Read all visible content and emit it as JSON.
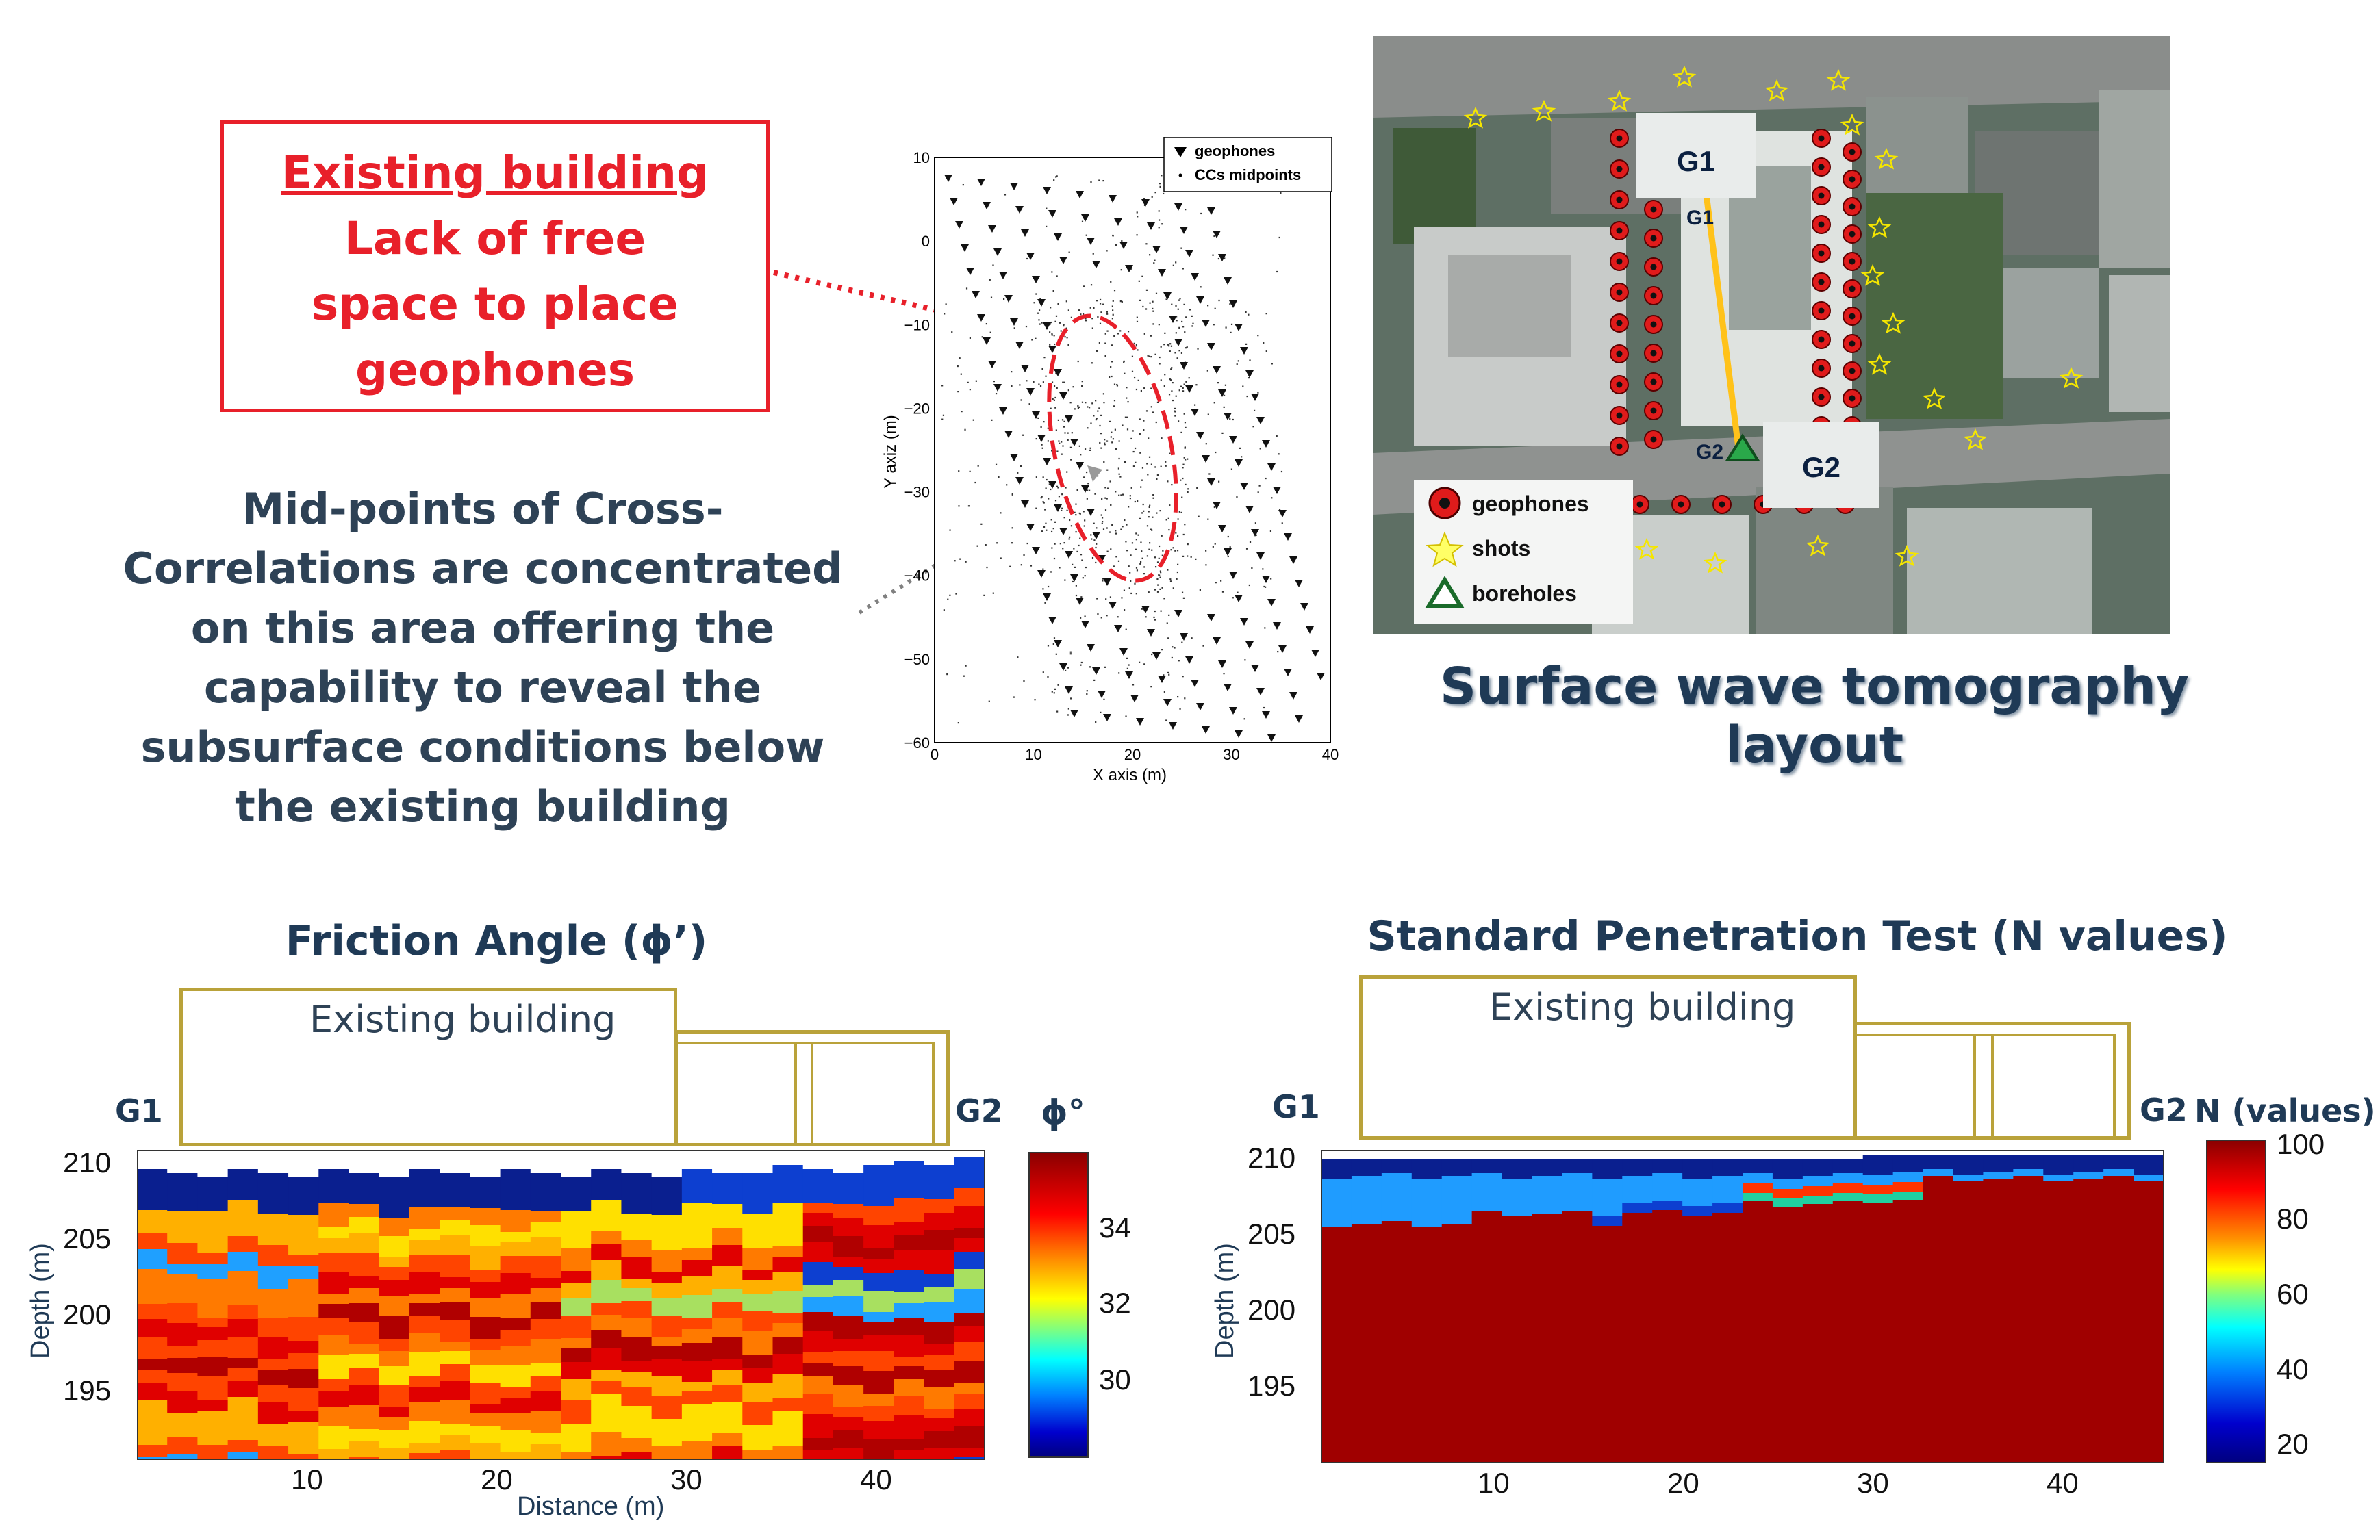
{
  "callout": {
    "line1": "Existing building",
    "line2": "Lack of free",
    "line3": "space to place",
    "line4": "geophones"
  },
  "midpoints_text": {
    "line1": "Mid-points of Cross-",
    "line2": "Correlations are concentrated",
    "line3": "on this area offering the",
    "line4": "capability to reveal the",
    "line5": "subsurface conditions below",
    "line6": "the existing building"
  },
  "scatter": {
    "x_label": "X axis (m)",
    "y_label": "Y axiz (m)",
    "x_ticks": [
      "0",
      "10",
      "20",
      "30",
      "40"
    ],
    "y_ticks": [
      "10",
      "0",
      "−10",
      "−20",
      "−30",
      "−40",
      "−50",
      "−60"
    ],
    "legend": [
      "geophones",
      "CCs midpoints"
    ]
  },
  "map": {
    "label_g1": "G1",
    "label_g2": "G2",
    "small_g1": "G1",
    "small_g2": "G2",
    "legend": [
      "geophones",
      "shots",
      "boreholes"
    ],
    "caption": "Surface wave tomography layout"
  },
  "friction": {
    "title": "Friction Angle (ϕ’)",
    "building_label": "Existing building",
    "g1": "G1",
    "g2": "G2",
    "y_label": "Depth (m)",
    "x_label": "Distance (m)",
    "y_ticks": [
      "210",
      "205",
      "200",
      "195"
    ],
    "x_ticks": [
      "10",
      "20",
      "30",
      "40"
    ],
    "colorbar_title": "ϕ°",
    "colorbar_ticks": [
      "34",
      "32",
      "30"
    ]
  },
  "spt": {
    "title": "Standard Penetration Test (N values)",
    "building_label": "Existing building",
    "g1": "G1",
    "g2": "G2",
    "y_label": "Depth (m)",
    "y_ticks": [
      "210",
      "205",
      "200",
      "195"
    ],
    "x_ticks": [
      "10",
      "20",
      "30",
      "40"
    ],
    "colorbar_title": "N (values)",
    "colorbar_ticks": [
      "100",
      "80",
      "60",
      "40",
      "20"
    ]
  },
  "colors": {
    "callout_red": "#e8202a",
    "text_navy": "#1f3a56",
    "building_outline": "#b9a23a",
    "dark_red": "#a00000"
  }
}
